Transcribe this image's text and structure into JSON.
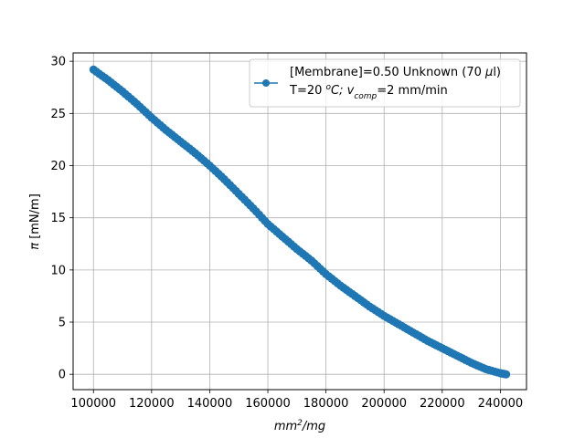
{
  "chart_data": {
    "type": "scatter",
    "title": "",
    "xlabel": {
      "main": "mm",
      "sup": "2",
      "tail": "/mg"
    },
    "ylabel": {
      "sym": "π",
      "rest": " [mN/m]"
    },
    "xlim": [
      93000,
      249000
    ],
    "ylim": [
      -1.47,
      30.8
    ],
    "xticks": [
      100000,
      120000,
      140000,
      160000,
      180000,
      200000,
      220000,
      240000
    ],
    "xtick_labels": [
      "100000",
      "120000",
      "140000",
      "160000",
      "180000",
      "200000",
      "220000",
      "240000"
    ],
    "yticks": [
      0,
      5,
      10,
      15,
      20,
      25,
      30
    ],
    "ytick_labels": [
      "0",
      "5",
      "10",
      "15",
      "20",
      "25",
      "30"
    ],
    "grid": true,
    "legend_position": "top-right",
    "legend": {
      "line1": "[Membrane]=0.50 Unknown (70 ",
      "line1_mu": "μ",
      "line1_tail": "l)",
      "line2_a": "T=20 ",
      "line2_sup": "o",
      "line2_b": "C; ",
      "line2_v": "v",
      "line2_sub": "comp",
      "line2_c": "=2 mm/min"
    },
    "color": "#1f77b4",
    "series": [
      {
        "x": [
          100000,
          105000,
          110000,
          115000,
          120000,
          125000,
          130000,
          135000,
          140000,
          145000,
          150000,
          155000,
          160000,
          165000,
          170000,
          175000,
          180000,
          185000,
          190000,
          195000,
          200000,
          205000,
          210000,
          215000,
          220000,
          225000,
          230000,
          235000,
          240000,
          242000
        ],
        "y": [
          29.2,
          28.2,
          27.1,
          25.9,
          24.6,
          23.4,
          22.3,
          21.2,
          20.0,
          18.7,
          17.3,
          15.9,
          14.4,
          13.2,
          12.0,
          10.9,
          9.6,
          8.5,
          7.5,
          6.5,
          5.6,
          4.8,
          4.0,
          3.2,
          2.5,
          1.8,
          1.1,
          0.5,
          0.1,
          0.0
        ]
      }
    ]
  }
}
